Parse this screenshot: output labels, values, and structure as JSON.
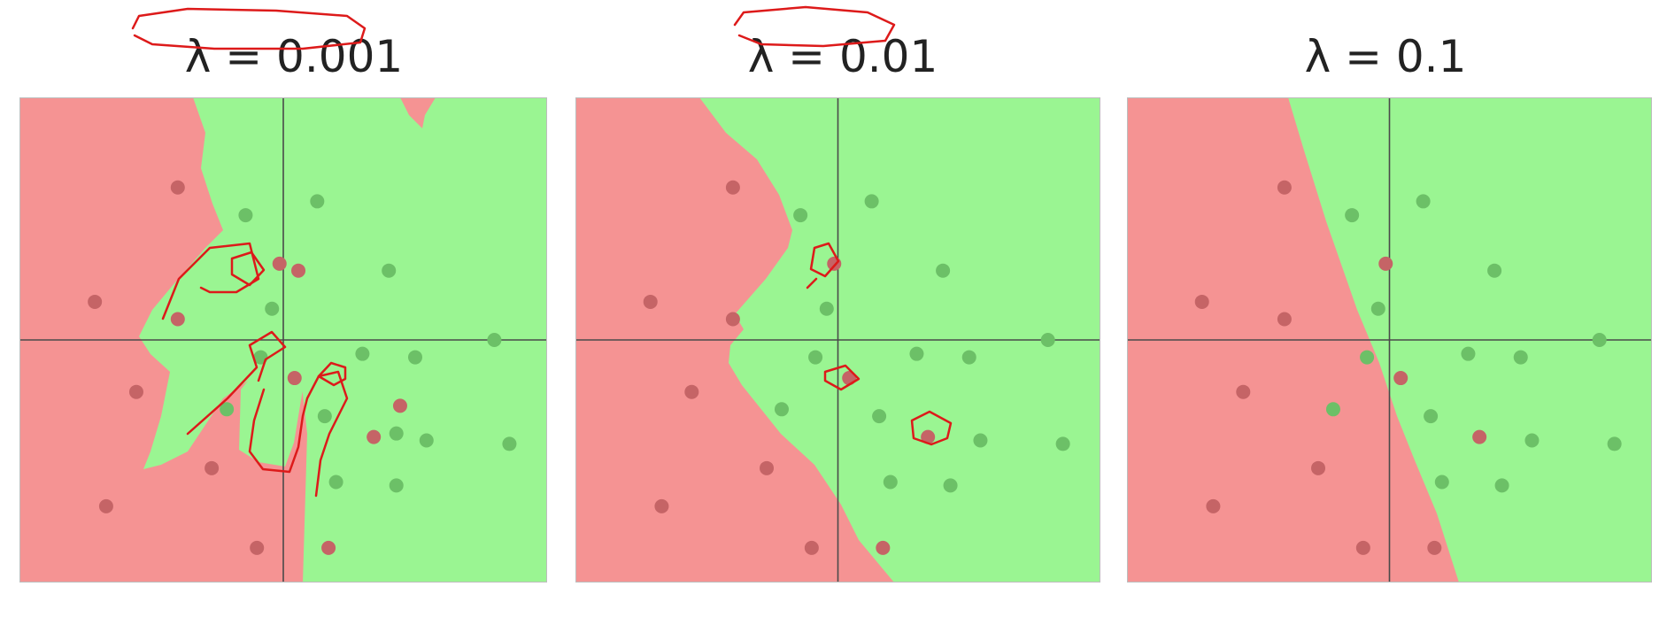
{
  "colors": {
    "region_red": "#f59393",
    "region_green": "#9af592",
    "point_red": "#c56466",
    "point_green": "#6cc067",
    "axis_line": "#4a4a4a",
    "annotation": "#dd1a1a"
  },
  "chart_data": [
    {
      "type": "scatter",
      "title": "λ = 0.001",
      "xlim": [
        -3.5,
        3.5
      ],
      "ylim": [
        -3.5,
        3.5
      ],
      "axes_through_origin": true,
      "background": "decision regions (red / green)",
      "red_points": [
        [
          -1.4,
          2.2
        ],
        [
          -2.5,
          0.55
        ],
        [
          -1.4,
          0.3
        ],
        [
          -0.05,
          1.1
        ],
        [
          0.2,
          1.0
        ],
        [
          -1.95,
          -0.75
        ],
        [
          -0.95,
          -1.85
        ],
        [
          -2.35,
          -2.4
        ],
        [
          -0.35,
          -3.0
        ],
        [
          0.6,
          -3.0
        ],
        [
          0.15,
          -0.55
        ],
        [
          1.2,
          -1.4
        ],
        [
          1.55,
          -0.95
        ]
      ],
      "green_points": [
        [
          0.45,
          2.0
        ],
        [
          -0.5,
          1.8
        ],
        [
          1.4,
          1.0
        ],
        [
          -0.15,
          0.45
        ],
        [
          -0.3,
          -0.25
        ],
        [
          1.05,
          -0.2
        ],
        [
          1.75,
          -0.25
        ],
        [
          2.8,
          0.0
        ],
        [
          -0.75,
          -1.0
        ],
        [
          0.55,
          -1.1
        ],
        [
          1.5,
          -1.35
        ],
        [
          1.9,
          -1.45
        ],
        [
          3.0,
          -1.5
        ],
        [
          0.7,
          -2.05
        ],
        [
          1.5,
          -2.1
        ]
      ]
    },
    {
      "type": "scatter",
      "title": "λ = 0.01",
      "xlim": [
        -3.5,
        3.5
      ],
      "ylim": [
        -3.5,
        3.5
      ],
      "axes_through_origin": true,
      "background": "decision regions (red / green)",
      "red_points": [
        [
          -1.4,
          2.2
        ],
        [
          -2.5,
          0.55
        ],
        [
          -1.4,
          0.3
        ],
        [
          -0.05,
          1.1
        ],
        [
          0.15,
          -0.55
        ],
        [
          -1.95,
          -0.75
        ],
        [
          -0.95,
          -1.85
        ],
        [
          -2.35,
          -2.4
        ],
        [
          -0.35,
          -3.0
        ],
        [
          0.6,
          -3.0
        ],
        [
          1.2,
          -1.4
        ]
      ],
      "green_points": [
        [
          0.45,
          2.0
        ],
        [
          -0.5,
          1.8
        ],
        [
          1.4,
          1.0
        ],
        [
          -0.15,
          0.45
        ],
        [
          -0.3,
          -0.25
        ],
        [
          1.05,
          -0.2
        ],
        [
          1.75,
          -0.25
        ],
        [
          2.8,
          0.0
        ],
        [
          -0.75,
          -1.0
        ],
        [
          0.55,
          -1.1
        ],
        [
          1.9,
          -1.45
        ],
        [
          3.0,
          -1.5
        ],
        [
          0.7,
          -2.05
        ],
        [
          1.5,
          -2.1
        ]
      ]
    },
    {
      "type": "scatter",
      "title": "λ = 0.1",
      "xlim": [
        -3.5,
        3.5
      ],
      "ylim": [
        -3.5,
        3.5
      ],
      "axes_through_origin": true,
      "background": "decision regions (red / green)",
      "red_points": [
        [
          -1.4,
          2.2
        ],
        [
          -2.5,
          0.55
        ],
        [
          -1.4,
          0.3
        ],
        [
          -0.05,
          1.1
        ],
        [
          0.15,
          -0.55
        ],
        [
          -1.95,
          -0.75
        ],
        [
          -0.95,
          -1.85
        ],
        [
          -2.35,
          -2.4
        ],
        [
          -0.35,
          -3.0
        ],
        [
          0.6,
          -3.0
        ],
        [
          1.2,
          -1.4
        ]
      ],
      "green_points": [
        [
          0.45,
          2.0
        ],
        [
          -0.5,
          1.8
        ],
        [
          1.4,
          1.0
        ],
        [
          -0.15,
          0.45
        ],
        [
          -0.3,
          -0.25
        ],
        [
          1.05,
          -0.2
        ],
        [
          1.75,
          -0.25
        ],
        [
          2.8,
          0.0
        ],
        [
          -0.75,
          -1.0
        ],
        [
          0.55,
          -1.1
        ],
        [
          1.9,
          -1.45
        ],
        [
          3.0,
          -1.5
        ],
        [
          0.7,
          -2.05
        ],
        [
          1.5,
          -2.1
        ]
      ]
    }
  ]
}
